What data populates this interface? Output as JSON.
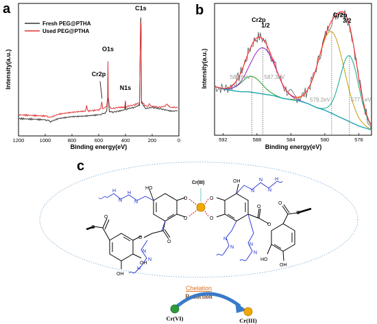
{
  "chart_data": [
    {
      "type": "line",
      "panel": "a",
      "xlabel": "Binding energy(eV)",
      "ylabel": "Intensity(a.u.)",
      "xlim": [
        1200,
        0
      ],
      "x_ticks": [
        "1200",
        "1000",
        "800",
        "600",
        "400",
        "200",
        "0"
      ],
      "legend_position": "top-left",
      "series": [
        {
          "name": "Fresh PEG@PTHA",
          "color": "#333333",
          "x": [
            1200,
            1100,
            1000,
            980,
            960,
            900,
            800,
            700,
            600,
            580,
            560,
            540,
            533,
            531,
            529,
            520,
            500,
            450,
            405,
            400,
            398,
            395,
            380,
            330,
            295,
            287,
            285,
            283,
            280,
            250,
            200,
            150,
            100,
            60,
            30,
            10
          ],
          "y": [
            0.14,
            0.135,
            0.13,
            0.125,
            0.115,
            0.14,
            0.155,
            0.16,
            0.17,
            0.175,
            0.18,
            0.2,
            0.3,
            0.56,
            0.3,
            0.2,
            0.19,
            0.2,
            0.21,
            0.28,
            0.22,
            0.21,
            0.22,
            0.23,
            0.25,
            0.88,
            0.95,
            0.88,
            0.27,
            0.22,
            0.23,
            0.22,
            0.21,
            0.2,
            0.2,
            0.2
          ]
        },
        {
          "name": "Used PEG@PTHA",
          "color": "#e03030",
          "x": [
            1200,
            1100,
            1000,
            980,
            960,
            900,
            800,
            700,
            690,
            680,
            600,
            585,
            577,
            570,
            560,
            540,
            533,
            531,
            529,
            520,
            500,
            450,
            405,
            400,
            398,
            395,
            380,
            330,
            295,
            287,
            285,
            283,
            280,
            250,
            230,
            220,
            210,
            200,
            150,
            100,
            90,
            80,
            60,
            30,
            10
          ],
          "y": [
            0.17,
            0.165,
            0.16,
            0.155,
            0.15,
            0.175,
            0.19,
            0.2,
            0.24,
            0.2,
            0.21,
            0.22,
            0.28,
            0.22,
            0.22,
            0.24,
            0.32,
            0.6,
            0.32,
            0.23,
            0.22,
            0.23,
            0.23,
            0.29,
            0.24,
            0.23,
            0.24,
            0.25,
            0.27,
            0.85,
            0.92,
            0.85,
            0.28,
            0.24,
            0.24,
            0.26,
            0.24,
            0.24,
            0.23,
            0.24,
            0.26,
            0.24,
            0.23,
            0.23,
            0.23
          ]
        }
      ],
      "annotations": [
        {
          "text": "C1s",
          "x": 285,
          "y": 1.0
        },
        {
          "text": "O1s",
          "x": 531,
          "y": 0.67
        },
        {
          "text": "N1s",
          "x": 400,
          "y": 0.36
        },
        {
          "text": "Cr2p",
          "x": 600,
          "y": 0.47
        }
      ]
    },
    {
      "type": "line",
      "panel": "b",
      "xlabel": "Binding energy(eV)",
      "ylabel": "Intensity(a.u.)",
      "xlim": [
        593,
        574.5
      ],
      "x_ticks": [
        "592",
        "588",
        "584",
        "580",
        "576"
      ],
      "raw_color": "#555555",
      "envelope_color": "#ff3333",
      "background_color": "#1aa9b5",
      "peaks": [
        {
          "center": 588.6,
          "height": 0.12,
          "width": 1.2,
          "color": "#2aa63a"
        },
        {
          "center": 587.3,
          "height": 0.35,
          "width": 1.5,
          "color": "#9b30c9"
        },
        {
          "center": 579.2,
          "height": 0.62,
          "width": 1.5,
          "color": "#c8a020"
        },
        {
          "center": 577.1,
          "height": 0.5,
          "width": 1.1,
          "color": "#1ab090"
        }
      ],
      "background_points": {
        "x": [
          593,
          592,
          590,
          589,
          588,
          587,
          586,
          585,
          584,
          583,
          582,
          581,
          580,
          579,
          578,
          577,
          576,
          575,
          574.5
        ],
        "y": [
          0.37,
          0.35,
          0.33,
          0.33,
          0.32,
          0.31,
          0.3,
          0.28,
          0.27,
          0.26,
          0.24,
          0.21,
          0.19,
          0.16,
          0.13,
          0.1,
          0.07,
          0.05,
          0.04
        ]
      },
      "peak_labels": [
        {
          "text": "Cr2p",
          "sub": "1/2",
          "x": 587.8
        },
        {
          "text": "Cr2p",
          "sub": "3/2",
          "x": 578.2
        }
      ],
      "ev_labels": [
        "588.6eV",
        "587.3eV",
        "579.2eV",
        "577.1eV"
      ]
    }
  ],
  "panel_labels": {
    "a": "a",
    "b": "b",
    "c": "c"
  },
  "scheme": {
    "center_ion": "Cr(III)",
    "ho_labels": [
      "HO",
      "OH",
      "OH",
      "OH",
      "HO"
    ],
    "n_labels": [
      "N",
      "H",
      "N",
      "H",
      "N",
      "N",
      "H",
      "N",
      "N",
      "N",
      "H",
      "N",
      "N",
      "N",
      "N"
    ],
    "chelation": "Chelation",
    "reduction": "Reduction",
    "start_ion": "Cr(VI)",
    "end_ion": "Cr(III)"
  }
}
